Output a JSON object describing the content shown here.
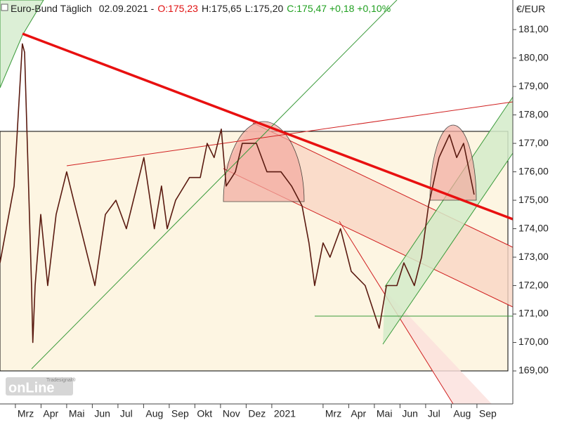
{
  "chart_data": {
    "type": "line",
    "title": "Euro-Bund Täglich",
    "date": "02.09.2021 -",
    "open": "O:175,23",
    "high": "H:175,65",
    "low": "L:175,20",
    "close": "C:175,47 +0,18 +0,10%",
    "y_axis_label": "€/EUR",
    "logo": "onLine",
    "logo_small": "Tradesignal®",
    "xlim": [
      -0.6,
      19.4
    ],
    "ylim": [
      167.84,
      182.04
    ],
    "xticks": [
      {
        "value": 0,
        "label": "Mrz"
      },
      {
        "value": 1,
        "label": "Apr"
      },
      {
        "value": 2,
        "label": "Mai"
      },
      {
        "value": 3,
        "label": "Jun"
      },
      {
        "value": 4,
        "label": "Jul"
      },
      {
        "value": 5,
        "label": "Aug"
      },
      {
        "value": 6,
        "label": "Sep"
      },
      {
        "value": 7,
        "label": "Okt"
      },
      {
        "value": 8,
        "label": "Nov"
      },
      {
        "value": 9,
        "label": "Dez"
      },
      {
        "value": 10,
        "label": "2021"
      },
      {
        "value": 12,
        "label": "Mrz"
      },
      {
        "value": 13,
        "label": "Apr"
      },
      {
        "value": 14,
        "label": "Mai"
      },
      {
        "value": 15,
        "label": "Jun"
      },
      {
        "value": 16,
        "label": "Jul"
      },
      {
        "value": 17,
        "label": "Aug"
      },
      {
        "value": 18,
        "label": "Sep"
      }
    ],
    "yticks": [
      {
        "value": 169,
        "label": "169,00"
      },
      {
        "value": 170,
        "label": "170,00"
      },
      {
        "value": 171,
        "label": "171,00"
      },
      {
        "value": 172,
        "label": "172,00"
      },
      {
        "value": 173,
        "label": "173,00"
      },
      {
        "value": 174,
        "label": "174,00"
      },
      {
        "value": 175,
        "label": "175,00"
      },
      {
        "value": 176,
        "label": "176,00"
      },
      {
        "value": 177,
        "label": "177,00"
      },
      {
        "value": 178,
        "label": "178,00"
      },
      {
        "value": 179,
        "label": "179,00"
      },
      {
        "value": 180,
        "label": "180,00"
      },
      {
        "value": 181,
        "label": "181,00"
      }
    ],
    "series": [
      {
        "color": "#5a1a10",
        "x": [
          -0.6,
          -0.05,
          0.27,
          0.36,
          0.63,
          0.68,
          0.77,
          0.99,
          1.26,
          1.59,
          2.0,
          2.27,
          2.55,
          3.1,
          3.51,
          3.92,
          4.33,
          4.74,
          5.01,
          5.42,
          5.7,
          5.92,
          6.25,
          6.79,
          7.21,
          7.48,
          7.75,
          8.03,
          8.22,
          8.58,
          8.85,
          9.4,
          9.81,
          10.36,
          10.77,
          11.18,
          11.45,
          11.67,
          12.0,
          12.27,
          12.68,
          13.1,
          13.64,
          14.19,
          14.47,
          14.88,
          15.15,
          15.56,
          15.84,
          16.11,
          16.52,
          16.93,
          17.21,
          17.48,
          17.89
        ],
        "values": [
          172.8,
          175.5,
          180.5,
          180.2,
          172,
          170,
          172,
          174.5,
          172,
          174.5,
          176,
          175,
          174,
          172,
          174.5,
          175,
          174,
          175.5,
          176.5,
          174,
          175.5,
          174,
          175,
          175.8,
          175.8,
          177,
          176.5,
          177.5,
          175.5,
          176,
          177,
          177,
          176,
          176,
          175.5,
          174.8,
          173.5,
          172,
          173.5,
          173,
          174,
          172.5,
          172,
          170.5,
          172,
          172,
          172.8,
          172,
          173,
          174.8,
          176.5,
          177.3,
          176.5,
          177,
          175.2
        ]
      }
    ]
  }
}
